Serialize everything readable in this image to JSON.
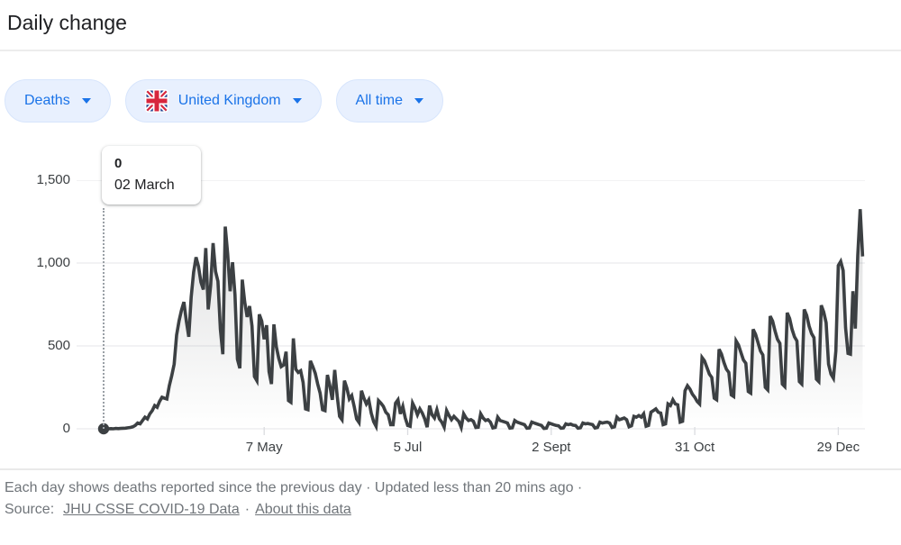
{
  "header": {
    "title": "Daily change"
  },
  "filters": [
    {
      "label": "Deaths"
    },
    {
      "label": "United Kingdom",
      "flag": "united-kingdom"
    },
    {
      "label": "All time"
    }
  ],
  "tooltip": {
    "value": "0",
    "date": "02 March"
  },
  "chart_data": {
    "type": "line",
    "title": "Daily change",
    "series_name": "Daily deaths reported, United Kingdom",
    "start_label": "02 March",
    "line_color": "#3c4043",
    "ylim": [
      0,
      1500
    ],
    "y_axis": {
      "labels": [
        "0",
        "500",
        "1,000",
        "1,500"
      ],
      "values": [
        0,
        500,
        1000,
        1500
      ]
    },
    "x_axis": {
      "labels": [
        "7 May",
        "5 Jul",
        "2 Sept",
        "31 Oct",
        "29 Dec"
      ],
      "day_offsets": [
        66,
        125,
        184,
        243,
        302
      ]
    },
    "values": [
      0,
      0,
      0,
      1,
      0,
      2,
      1,
      2,
      3,
      4,
      6,
      8,
      12,
      20,
      35,
      30,
      50,
      70,
      60,
      90,
      110,
      140,
      130,
      165,
      190,
      185,
      180,
      260,
      320,
      390,
      565,
      650,
      715,
      765,
      650,
      555,
      795,
      945,
      1035,
      980,
      885,
      840,
      1090,
      720,
      865,
      1120,
      950,
      890,
      600,
      450,
      1220,
      1055,
      830,
      1005,
      810,
      420,
      365,
      900,
      765,
      675,
      740,
      620,
      315,
      290,
      690,
      650,
      540,
      625,
      345,
      270,
      630,
      495,
      425,
      375,
      385,
      465,
      170,
      160,
      545,
      360,
      340,
      350,
      280,
      120,
      115,
      410,
      375,
      335,
      270,
      215,
      115,
      110,
      325,
      260,
      175,
      355,
      200,
      75,
      55,
      290,
      245,
      180,
      200,
      135,
      60,
      38,
      230,
      185,
      150,
      175,
      95,
      43,
      15,
      170,
      155,
      135,
      100,
      85,
      25,
      25,
      155,
      175,
      90,
      135,
      65,
      20,
      15,
      155,
      125,
      85,
      120,
      95,
      60,
      10,
      140,
      85,
      65,
      115,
      60,
      40,
      10,
      110,
      80,
      55,
      75,
      60,
      45,
      8,
      90,
      65,
      50,
      55,
      45,
      8,
      10,
      90,
      65,
      50,
      55,
      40,
      5,
      8,
      70,
      50,
      45,
      40,
      35,
      4,
      6,
      50,
      40,
      35,
      30,
      25,
      3,
      5,
      40,
      35,
      30,
      25,
      20,
      2,
      4,
      35,
      30,
      25,
      20,
      18,
      3,
      5,
      30,
      25,
      28,
      22,
      20,
      4,
      6,
      35,
      30,
      32,
      28,
      25,
      5,
      8,
      40,
      35,
      38,
      40,
      35,
      8,
      12,
      70,
      55,
      60,
      65,
      55,
      12,
      18,
      75,
      70,
      80,
      70,
      90,
      15,
      20,
      100,
      110,
      120,
      100,
      95,
      25,
      30,
      150,
      140,
      175,
      150,
      145,
      40,
      45,
      230,
      260,
      240,
      210,
      190,
      165,
      150,
      430,
      410,
      370,
      330,
      310,
      185,
      175,
      480,
      450,
      400,
      360,
      340,
      205,
      195,
      530,
      505,
      460,
      415,
      395,
      225,
      215,
      600,
      570,
      520,
      470,
      445,
      250,
      235,
      680,
      650,
      590,
      540,
      515,
      270,
      255,
      700,
      665,
      600,
      555,
      530,
      285,
      270,
      720,
      685,
      620,
      575,
      550,
      300,
      285,
      745,
      705,
      640,
      390,
      330,
      305,
      470,
      985,
      1010,
      955,
      610,
      455,
      450,
      830,
      605,
      1045,
      1325,
      1040
    ]
  },
  "footer": {
    "line1": "Each day shows deaths reported since the previous day · Updated less than 20 mins ago  ·",
    "source_label": "Source:",
    "source_link": "JHU CSSE COVID-19 Data",
    "separator": "·",
    "about_link": "About this data"
  }
}
